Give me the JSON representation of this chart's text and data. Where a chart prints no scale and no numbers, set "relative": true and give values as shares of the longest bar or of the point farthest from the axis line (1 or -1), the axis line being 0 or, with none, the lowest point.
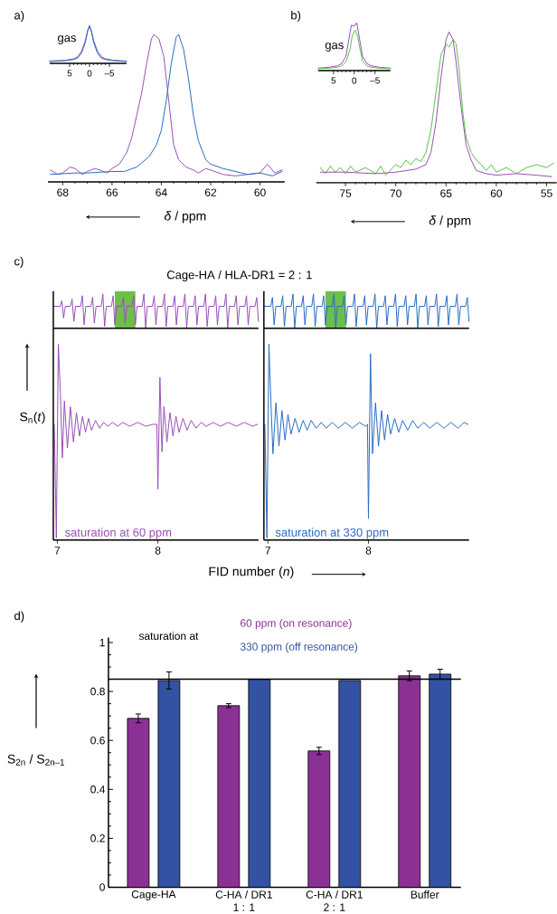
{
  "chart_data": [
    {
      "type": "line",
      "relative": true,
      "xlim": [
        68.6,
        59.0
      ],
      "xticks": [
        68,
        66,
        64,
        62,
        60
      ],
      "xlabel": "*δ* / ppm",
      "annotations": [
        "a)"
      ],
      "series": [
        {
          "color": "#9a4fb5",
          "x": [
            68.5,
            68.2,
            68.0,
            67.7,
            67.5,
            67.2,
            67.0,
            66.7,
            66.5,
            66.2,
            66.0,
            65.7,
            65.4,
            65.2,
            65.0,
            64.8,
            64.6,
            64.4,
            64.3,
            64.1,
            63.9,
            63.7,
            63.5,
            63.3,
            63.0,
            62.7,
            62.5,
            62.2,
            62.0,
            61.5,
            61.0,
            60.5,
            60.0,
            59.7,
            59.4,
            59.1
          ],
          "values": [
            0.08,
            0.05,
            0.06,
            0.1,
            0.09,
            0.05,
            0.07,
            0.09,
            0.08,
            0.06,
            0.09,
            0.12,
            0.2,
            0.3,
            0.45,
            0.6,
            0.8,
            0.97,
            1.0,
            0.97,
            0.85,
            0.55,
            0.25,
            0.15,
            0.1,
            0.08,
            0.06,
            0.09,
            0.08,
            0.05,
            0.04,
            0.05,
            0.06,
            0.12,
            0.06,
            0.08
          ]
        },
        {
          "color": "#2a6cc4",
          "x": [
            68.5,
            67.5,
            67.0,
            66.0,
            65.5,
            65.0,
            64.5,
            64.2,
            64.0,
            63.8,
            63.6,
            63.4,
            63.3,
            63.1,
            62.9,
            62.7,
            62.5,
            62.2,
            62.0,
            61.5,
            61.0,
            60.5,
            60.0,
            59.5,
            59.1
          ],
          "values": [
            0.05,
            0.06,
            0.06,
            0.07,
            0.07,
            0.1,
            0.17,
            0.25,
            0.35,
            0.55,
            0.8,
            0.98,
            1.0,
            0.9,
            0.7,
            0.45,
            0.28,
            0.15,
            0.12,
            0.09,
            0.07,
            0.05,
            0.06,
            0.04,
            0.07
          ]
        }
      ]
    },
    {
      "type": "line",
      "relative": true,
      "xlim": [
        10,
        -9.3
      ],
      "xticks": [
        5,
        0,
        {
          "value": -5,
          "label": "–5"
        }
      ],
      "annotations": [
        "gas"
      ],
      "series": [
        {
          "color": "#9a4fb5",
          "x": [
            10,
            6,
            4,
            3,
            2,
            1,
            0.5,
            0,
            -0.5,
            -1,
            -2,
            -3,
            -4,
            -6,
            -9.3
          ],
          "values": [
            0.06,
            0.08,
            0.12,
            0.17,
            0.32,
            0.62,
            0.86,
            1.0,
            0.86,
            0.62,
            0.32,
            0.17,
            0.12,
            0.08,
            0.06
          ]
        },
        {
          "color": "#2a6cc4",
          "x": [
            10,
            6,
            4,
            3,
            2,
            1,
            0.5,
            0,
            -0.5,
            -1,
            -2,
            -3,
            -4,
            -6,
            -9.3
          ],
          "values": [
            0.05,
            0.07,
            0.1,
            0.14,
            0.27,
            0.57,
            0.84,
            0.99,
            0.84,
            0.57,
            0.27,
            0.14,
            0.1,
            0.07,
            0.05
          ]
        }
      ]
    },
    {
      "type": "line",
      "relative": true,
      "xlim": [
        77.9,
        54.0
      ],
      "xticks": [
        75,
        70,
        65,
        60,
        55
      ],
      "xlabel": "*δ* / ppm",
      "annotations": [
        "b)"
      ],
      "series": [
        {
          "color": "#5cc04a",
          "x": [
            77.5,
            77.0,
            76.5,
            76.0,
            75.5,
            75.0,
            74.5,
            74.0,
            73.0,
            72.0,
            71.5,
            71.0,
            70.0,
            69.5,
            69.0,
            68.5,
            68.0,
            67.5,
            67.0,
            66.5,
            66.0,
            65.5,
            65.0,
            64.7,
            64.3,
            64.0,
            63.7,
            63.3,
            63.0,
            62.5,
            62.0,
            61.5,
            61.0,
            60.5,
            60.0,
            59.0,
            58.0,
            57.0,
            56.0,
            55.0,
            54.3
          ],
          "values": [
            0.1,
            0.06,
            0.11,
            0.07,
            0.1,
            0.06,
            0.11,
            0.07,
            0.1,
            0.06,
            0.11,
            0.05,
            0.12,
            0.1,
            0.15,
            0.12,
            0.16,
            0.14,
            0.2,
            0.35,
            0.6,
            0.85,
            0.92,
            0.9,
            0.95,
            0.92,
            0.75,
            0.45,
            0.3,
            0.2,
            0.15,
            0.12,
            0.08,
            0.12,
            0.07,
            0.1,
            0.06,
            0.1,
            0.12,
            0.1,
            0.13
          ]
        },
        {
          "color": "#9a4fb5",
          "x": [
            77.5,
            75.0,
            72.0,
            70.0,
            68.0,
            67.0,
            66.5,
            66.0,
            65.5,
            65.0,
            64.7,
            64.3,
            64.0,
            63.5,
            63.0,
            62.5,
            62.0,
            61.0,
            60.0,
            58.0,
            56.0,
            54.5
          ],
          "values": [
            0.07,
            0.07,
            0.06,
            0.07,
            0.09,
            0.12,
            0.2,
            0.4,
            0.7,
            0.95,
            1.0,
            0.95,
            0.8,
            0.5,
            0.25,
            0.15,
            0.08,
            0.06,
            0.05,
            0.06,
            0.05,
            0.04
          ]
        }
      ]
    },
    {
      "type": "line",
      "relative": true,
      "xlim": [
        8.7,
        -8.7
      ],
      "xticks": [
        5,
        0,
        {
          "value": -5,
          "label": "–5"
        }
      ],
      "annotations": [
        "gas"
      ],
      "series": [
        {
          "color": "#9a4fb5",
          "x": [
            8.7,
            6,
            4,
            3,
            2,
            1.2,
            0.7,
            0,
            -0.6,
            -1.2,
            -2,
            -3,
            -4,
            -6,
            -8.7
          ],
          "values": [
            0.05,
            0.07,
            0.1,
            0.15,
            0.3,
            0.7,
            0.95,
            0.93,
            1.0,
            0.7,
            0.3,
            0.15,
            0.1,
            0.07,
            0.05
          ]
        },
        {
          "color": "#5cc04a",
          "x": [
            8.7,
            6,
            4,
            3,
            2,
            1,
            0.5,
            -0.2,
            -0.8,
            -1.5,
            -2,
            -3,
            -4,
            -6,
            -8.7
          ],
          "values": [
            0.04,
            0.05,
            0.07,
            0.1,
            0.18,
            0.45,
            0.72,
            0.85,
            0.72,
            0.4,
            0.2,
            0.1,
            0.07,
            0.05,
            0.04
          ]
        }
      ]
    },
    {
      "type": "line",
      "relative": true,
      "title": "Cage-HA / HLA-DR1 = 2 : 1",
      "annotations": [
        "c)"
      ],
      "categories": [
        null,
        null,
        null,
        null,
        null,
        null,
        null,
        null,
        null,
        null,
        null,
        null,
        null,
        null,
        null,
        null,
        null,
        null,
        null,
        null,
        null,
        null,
        null,
        null,
        null,
        null,
        null,
        null,
        null,
        null,
        null,
        null,
        null,
        null,
        null,
        null,
        null,
        null,
        null,
        null,
        null,
        null,
        null,
        null,
        null,
        null,
        null,
        null,
        null,
        null,
        null,
        null,
        null,
        null,
        null,
        null,
        null,
        null,
        null,
        null,
        null,
        null,
        null,
        null,
        null,
        null,
        null,
        null,
        null,
        null,
        null,
        null,
        null,
        null,
        null,
        null,
        null,
        null,
        null,
        null,
        null,
        null,
        null,
        null,
        null,
        null,
        null,
        null,
        null,
        null,
        null,
        null,
        null,
        null,
        null,
        null,
        null,
        null,
        null,
        null,
        null,
        null,
        null,
        null,
        null,
        null,
        null,
        null,
        null,
        null,
        null,
        null,
        null,
        null,
        null,
        null,
        null,
        null,
        null,
        null,
        null
      ],
      "series": [
        {
          "color": "#9a4fb5",
          "values": [
            0.64,
            0.64,
            0.64,
            0.64,
            0.64,
            0.8,
            0.3,
            0.64,
            0.64,
            0.64,
            0.64,
            0.85,
            0.2,
            0.64,
            0.64,
            0.64,
            0.64,
            0.95,
            0.1,
            0.64,
            0.64,
            0.64,
            0.64,
            0.9,
            0.15,
            0.64,
            0.64,
            0.64,
            0.64,
            1,
            0.05,
            0.64,
            0.64,
            0.64,
            0.64,
            0.95,
            0.1,
            0.64,
            0.64,
            0.64,
            0.64,
            0.9,
            0.15,
            0.64,
            0.64,
            0.64,
            0.64,
            0.95,
            0.1,
            0.64,
            0.64,
            0.64,
            0.64,
            1,
            0,
            0.64,
            0.64,
            0.64,
            0.64,
            0.95,
            0.1,
            0.64,
            0.64,
            0.64,
            0.64,
            1,
            0.05,
            0.64,
            0.64,
            0.64,
            0.64,
            0.95,
            0.1,
            0.64,
            0.64,
            0.64,
            0.64,
            1,
            0,
            0.64,
            0.64,
            0.64,
            0.64,
            0.95,
            0.1,
            0.64,
            0.64,
            0.64,
            0.64,
            1,
            0.05,
            0.64,
            0.64,
            0.64,
            0.64,
            0.95,
            0.1,
            0.64,
            0.64,
            0.64,
            0.64,
            1,
            0,
            0.64,
            0.64,
            0.64,
            0.64,
            0.95,
            0.1,
            0.64,
            0.64,
            0.64,
            0.64,
            0.95,
            0.1,
            0.64,
            0.64,
            0.64,
            0.64,
            0.9,
            0.2
          ]
        }
      ]
    },
    {
      "type": "line",
      "relative": true,
      "categories": [
        null,
        null,
        null,
        null,
        null,
        null,
        null,
        null,
        null,
        null,
        null,
        null,
        null,
        null,
        null,
        null,
        null,
        null,
        null,
        null,
        null,
        null,
        null,
        null,
        null,
        null,
        null,
        null,
        null,
        null,
        null,
        null,
        null,
        null,
        null,
        null,
        null,
        null,
        null,
        null,
        null,
        null,
        null,
        null,
        null,
        null,
        null,
        null,
        null,
        null,
        null,
        null,
        null,
        null,
        null,
        null,
        null,
        null,
        null,
        null,
        null,
        null,
        null,
        null,
        null,
        null,
        null,
        null,
        null,
        null,
        null,
        null,
        null,
        null,
        null,
        null,
        null,
        null,
        null,
        null,
        null,
        null,
        null,
        null,
        null,
        null,
        null,
        null,
        null,
        null,
        null,
        null,
        null,
        null,
        null,
        null,
        null,
        null,
        null,
        null,
        null,
        null,
        null,
        null,
        null,
        null,
        null,
        null,
        null,
        null,
        null,
        null,
        null,
        null,
        null,
        null,
        null,
        null,
        null,
        null,
        null
      ],
      "series": [
        {
          "color": "#2a6cc4",
          "values": [
            0.64,
            0.64,
            0.64,
            0.64,
            0.64,
            0.9,
            0.1,
            0.64,
            0.64,
            0.64,
            0.64,
            0.95,
            0.05,
            0.64,
            0.64,
            0.64,
            0.64,
            1,
            0,
            0.64,
            0.64,
            0.64,
            0.64,
            0.95,
            0.1,
            0.64,
            0.64,
            0.64,
            0.64,
            1,
            0.05,
            0.64,
            0.64,
            0.64,
            0.64,
            0.95,
            0.1,
            0.64,
            0.64,
            0.64,
            0.64,
            1,
            0,
            0.64,
            0.64,
            0.64,
            0.64,
            0.95,
            0.1,
            0.64,
            0.64,
            0.64,
            0.64,
            1,
            0.05,
            0.64,
            0.64,
            0.64,
            0.64,
            0.95,
            0.1,
            0.64,
            0.64,
            0.64,
            0.64,
            1,
            0,
            0.64,
            0.64,
            0.64,
            0.64,
            0.95,
            0.1,
            0.64,
            0.64,
            0.64,
            0.64,
            1,
            0.05,
            0.64,
            0.64,
            0.64,
            0.64,
            0.95,
            0.1,
            0.64,
            0.64,
            0.64,
            0.64,
            1,
            0,
            0.64,
            0.64,
            0.64,
            0.64,
            0.95,
            0.1,
            0.64,
            0.64,
            0.64,
            0.64,
            1,
            0.05,
            0.64,
            0.64,
            0.64,
            0.64,
            0.95,
            0.1,
            0.64,
            0.64,
            0.64,
            0.64,
            1,
            0.1,
            0.64,
            0.64,
            0.64,
            0.64,
            0.9,
            0.2
          ]
        }
      ]
    },
    {
      "type": "line",
      "relative": true,
      "xlim": [
        6.96,
        9.0
      ],
      "xticks": [
        7,
        8
      ],
      "tick_labels": "x",
      "xlabel": "FID number (*n*)",
      "ylabel": "S$_{n}$(*t*)",
      "series": [
        {
          "name": "saturation at 60 ppm",
          "color": "#9a4fb5",
          "x": [
            6.97,
            6.99,
            7.01,
            7.03,
            7.05,
            7.07,
            7.1,
            7.13,
            7.16,
            7.19,
            7.22,
            7.25,
            7.28,
            7.31,
            7.34,
            7.38,
            7.42,
            7.46,
            7.5,
            7.55,
            7.6,
            7.65,
            7.72,
            7.8,
            7.88,
            7.95,
            7.99,
            8.0,
            8.02,
            8.04,
            8.06,
            8.09,
            8.12,
            8.15,
            8.18,
            8.21,
            8.25,
            8.29,
            8.33,
            8.38,
            8.43,
            8.48,
            8.55,
            8.62,
            8.7,
            8.78,
            8.86,
            8.94,
            8.99
          ],
          "values": [
            0.59,
            0.01,
            1.0,
            0.75,
            0.42,
            0.71,
            0.47,
            0.68,
            0.5,
            0.65,
            0.53,
            0.63,
            0.55,
            0.62,
            0.56,
            0.61,
            0.57,
            0.6,
            0.58,
            0.6,
            0.58,
            0.6,
            0.58,
            0.6,
            0.58,
            0.59,
            0.59,
            0.26,
            0.83,
            0.45,
            0.68,
            0.5,
            0.65,
            0.53,
            0.63,
            0.55,
            0.62,
            0.56,
            0.61,
            0.57,
            0.6,
            0.58,
            0.6,
            0.58,
            0.6,
            0.58,
            0.6,
            0.58,
            0.59
          ]
        }
      ]
    },
    {
      "type": "line",
      "relative": true,
      "xlim": [
        6.96,
        9.0
      ],
      "xticks": [
        7,
        8
      ],
      "tick_labels": "x",
      "series": [
        {
          "name": "saturation at 330 ppm",
          "color": "#2a6cc4",
          "x": [
            6.97,
            6.99,
            7.01,
            7.03,
            7.05,
            7.08,
            7.11,
            7.14,
            7.17,
            7.2,
            7.23,
            7.27,
            7.31,
            7.35,
            7.39,
            7.43,
            7.48,
            7.53,
            7.58,
            7.64,
            7.7,
            7.77,
            7.84,
            7.91,
            7.97,
            7.99,
            8.0,
            8.02,
            8.04,
            8.07,
            8.1,
            8.13,
            8.16,
            8.19,
            8.22,
            8.26,
            8.3,
            8.34,
            8.39,
            8.44,
            8.49,
            8.55,
            8.61,
            8.68,
            8.75,
            8.82,
            8.89,
            8.95,
            8.99
          ],
          "values": [
            0.59,
            0.01,
            1.0,
            0.7,
            0.44,
            0.7,
            0.48,
            0.66,
            0.51,
            0.64,
            0.54,
            0.62,
            0.55,
            0.61,
            0.56,
            0.61,
            0.57,
            0.6,
            0.57,
            0.6,
            0.57,
            0.6,
            0.57,
            0.6,
            0.58,
            0.59,
            0.11,
            0.95,
            0.44,
            0.7,
            0.48,
            0.66,
            0.51,
            0.64,
            0.54,
            0.62,
            0.55,
            0.61,
            0.56,
            0.61,
            0.57,
            0.6,
            0.57,
            0.6,
            0.57,
            0.6,
            0.57,
            0.6,
            0.59
          ]
        }
      ]
    },
    {
      "type": "bar",
      "categories": [
        "Cage-HA",
        "C-HA / DR1 1 : 1",
        "C-HA / DR1 2 : 1",
        "Buffer"
      ],
      "ylim": [
        0,
        1.02
      ],
      "yticks": [
        0,
        0.2,
        0.4,
        0.6,
        0.8,
        1
      ],
      "ylabel": "S$_{2n}$ / S$_{2n–1}$",
      "annotations": [
        "d)"
      ],
      "legend": "top",
      "legend_title": "saturation at",
      "ref_lines": [
        {
          "axis": "y",
          "value": 0.85,
          "color": "#000000"
        }
      ],
      "series": [
        {
          "name": "60 ppm (on resonance)",
          "color": "#8b3194",
          "values": [
            0.69,
            0.742,
            0.557,
            0.864
          ],
          "errors": [
            0.018,
            0.008,
            0.015,
            0.02
          ]
        },
        {
          "name": "330 ppm (off resonance)",
          "color": "#3352a3",
          "values": [
            0.845,
            0.85,
            0.845,
            0.871
          ],
          "errors": [
            0.035,
            null,
            null,
            0.02
          ]
        }
      ]
    }
  ]
}
